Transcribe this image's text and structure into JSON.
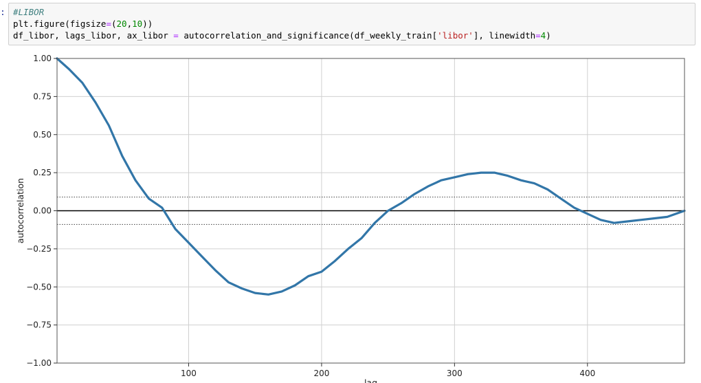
{
  "cell": {
    "prompt": ":",
    "line1": "#LIBOR",
    "line2": {
      "a": "plt.figure(figsize",
      "eq": "=",
      "b": "(",
      "n1": "20",
      "c": ",",
      "n2": "10",
      "d": "))"
    },
    "line3": {
      "a": "df_libor, lags_libor, ax_libor ",
      "eq": "=",
      "b": " autocorrelation_and_significance(df_weekly_train[",
      "s": "'libor'",
      "c": "], linewidth",
      "eq2": "=",
      "n": "4",
      "d": ")"
    }
  },
  "chart_data": {
    "type": "line",
    "xlabel": "lag",
    "ylabel": "autocorrelation",
    "xlim": [
      1,
      473
    ],
    "ylim": [
      -1.0,
      1.0
    ],
    "xticks": [
      100,
      200,
      300,
      400
    ],
    "xtick_labels": [
      "100",
      "200",
      "300",
      "400"
    ],
    "yticks": [
      1.0,
      0.75,
      0.5,
      0.25,
      0.0,
      -0.25,
      -0.5,
      -0.75,
      -1.0
    ],
    "ytick_labels": [
      "1.00",
      "0.75",
      "0.50",
      "0.25",
      "0.00",
      "−0.25",
      "−0.50",
      "−0.75",
      "−1.00"
    ],
    "grid": true,
    "significance_band": 0.09,
    "colors": {
      "line": "#3276a8",
      "zero": "#000000",
      "band": "#555555",
      "grid": "#d0d0d0"
    },
    "series": [
      {
        "x": [
          1,
          10,
          20,
          30,
          40,
          50,
          60,
          70,
          80,
          90,
          100,
          110,
          120,
          130,
          140,
          150,
          160,
          170,
          180,
          190,
          200,
          210,
          220,
          230,
          240,
          250,
          260,
          270,
          280,
          290,
          300,
          310,
          320,
          330,
          340,
          350,
          360,
          370,
          380,
          390,
          400,
          410,
          420,
          430,
          440,
          450,
          460,
          473
        ],
        "y": [
          1.0,
          0.93,
          0.84,
          0.71,
          0.56,
          0.36,
          0.2,
          0.08,
          0.02,
          -0.12,
          -0.21,
          -0.3,
          -0.39,
          -0.47,
          -0.51,
          -0.54,
          -0.55,
          -0.53,
          -0.49,
          -0.43,
          -0.4,
          -0.33,
          -0.25,
          -0.18,
          -0.08,
          0.0,
          0.05,
          0.11,
          0.16,
          0.2,
          0.22,
          0.24,
          0.25,
          0.25,
          0.23,
          0.2,
          0.18,
          0.14,
          0.08,
          0.02,
          -0.02,
          -0.06,
          -0.08,
          -0.07,
          -0.06,
          -0.05,
          -0.04,
          0.0
        ]
      }
    ]
  }
}
